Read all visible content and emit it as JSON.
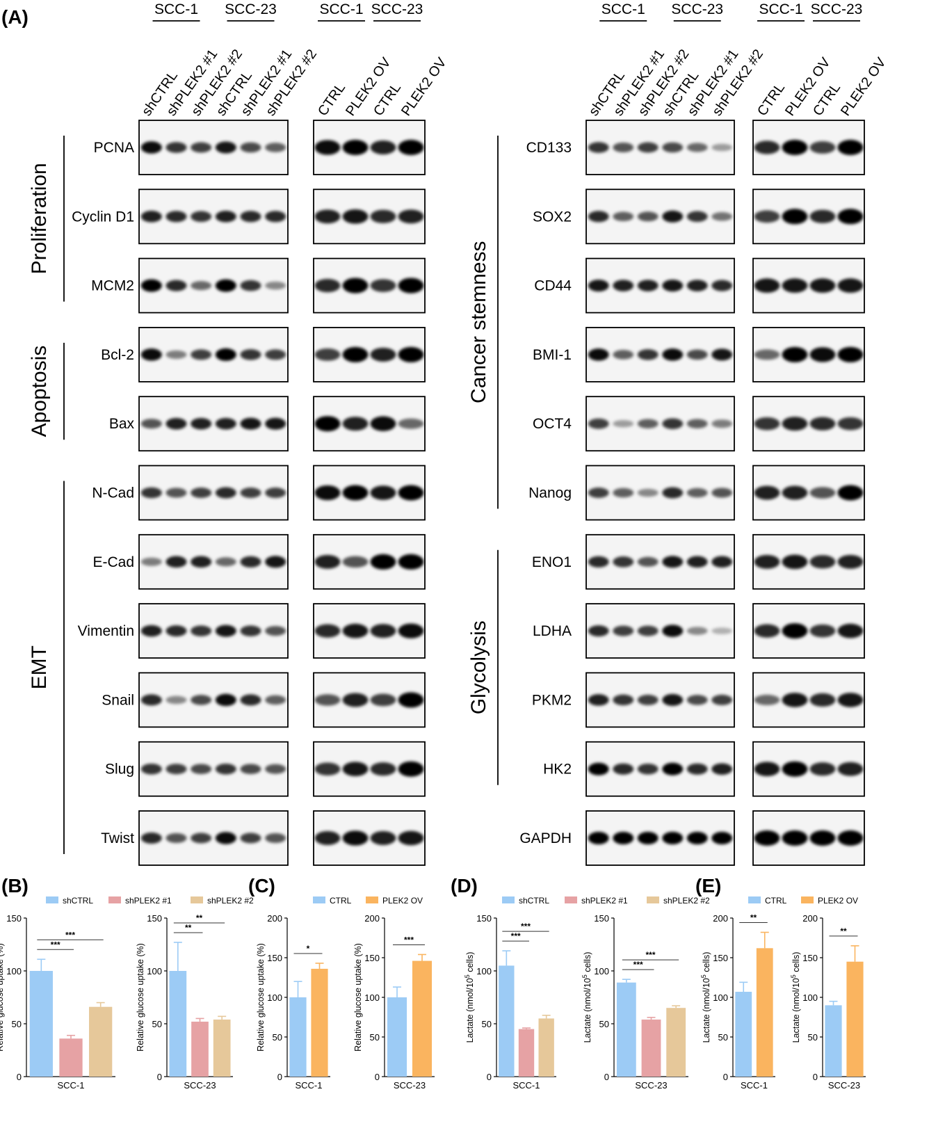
{
  "panel_labels": [
    "(A)",
    "(B)",
    "(C)",
    "(D)",
    "(E)"
  ],
  "blot_left": {
    "headers": {
      "kd": [
        "SCC-1",
        "SCC-23"
      ],
      "ov": [
        "SCC-1",
        "SCC-23"
      ]
    },
    "lanes_kd": [
      "shCTRL",
      "shPLEK2 #1",
      "shPLEK2 #2",
      "shCTRL",
      "shPLEK2 #1",
      "shPLEK2 #2"
    ],
    "lanes_ov": [
      "CTRL",
      "PLEK2 OV",
      "CTRL",
      "PLEK2 OV"
    ],
    "groups": [
      {
        "label": "Proliferation",
        "rows": [
          0,
          2
        ]
      },
      {
        "label": "Apoptosis",
        "rows": [
          3,
          4
        ]
      },
      {
        "label": "EMT",
        "rows": [
          5,
          10
        ]
      }
    ],
    "proteins": [
      "PCNA",
      "Cyclin D1",
      "MCM2",
      "Bcl-2",
      "Bax",
      "N-Cad",
      "E-Cad",
      "Vimentin",
      "Snail",
      "Slug",
      "Twist"
    ],
    "kd_intensity": [
      [
        0.95,
        0.75,
        0.7,
        0.9,
        0.65,
        0.55
      ],
      [
        0.85,
        0.8,
        0.75,
        0.85,
        0.8,
        0.8
      ],
      [
        1.0,
        0.8,
        0.5,
        1.0,
        0.75,
        0.35
      ],
      [
        0.95,
        0.4,
        0.7,
        1.0,
        0.75,
        0.7
      ],
      [
        0.6,
        0.85,
        0.85,
        0.85,
        0.9,
        0.9
      ],
      [
        0.75,
        0.6,
        0.7,
        0.8,
        0.7,
        0.7
      ],
      [
        0.4,
        0.85,
        0.85,
        0.5,
        0.8,
        0.9
      ],
      [
        0.85,
        0.8,
        0.75,
        0.9,
        0.75,
        0.6
      ],
      [
        0.8,
        0.35,
        0.65,
        0.95,
        0.8,
        0.55
      ],
      [
        0.75,
        0.7,
        0.65,
        0.75,
        0.65,
        0.6
      ],
      [
        0.8,
        0.6,
        0.7,
        0.95,
        0.7,
        0.6
      ]
    ],
    "ov_intensity": [
      [
        0.95,
        1.0,
        0.85,
        1.0
      ],
      [
        0.85,
        0.9,
        0.8,
        0.85
      ],
      [
        0.8,
        1.0,
        0.75,
        1.0
      ],
      [
        0.7,
        1.0,
        0.85,
        1.0
      ],
      [
        1.0,
        0.85,
        0.95,
        0.5
      ],
      [
        0.95,
        1.0,
        0.9,
        1.0
      ],
      [
        0.85,
        0.6,
        1.0,
        1.0
      ],
      [
        0.8,
        0.9,
        0.85,
        0.95
      ],
      [
        0.6,
        0.85,
        0.7,
        1.0
      ],
      [
        0.75,
        0.9,
        0.8,
        1.0
      ],
      [
        0.85,
        0.95,
        0.85,
        0.9
      ]
    ]
  },
  "blot_right": {
    "headers": {
      "kd": [
        "SCC-1",
        "SCC-23"
      ],
      "ov": [
        "SCC-1",
        "SCC-23"
      ]
    },
    "lanes_kd": [
      "shCTRL",
      "shPLEK2 #1",
      "shPLEK2 #2",
      "shCTRL",
      "shPLEK2 #1",
      "shPLEK2 #2"
    ],
    "lanes_ov": [
      "CTRL",
      "PLEK2 OV",
      "CTRL",
      "PLEK2 OV"
    ],
    "groups": [
      {
        "label": "Cancer stemness",
        "rows": [
          0,
          5
        ]
      },
      {
        "label": "Glycolysis",
        "rows": [
          6,
          9
        ]
      }
    ],
    "proteins": [
      "CD133",
      "SOX2",
      "CD44",
      "BMI-1",
      "OCT4",
      "Nanog",
      "ENO1",
      "LDHA",
      "PKM2",
      "HK2",
      "GAPDH"
    ],
    "kd_intensity": [
      [
        0.75,
        0.6,
        0.7,
        0.65,
        0.5,
        0.25
      ],
      [
        0.8,
        0.55,
        0.6,
        0.9,
        0.75,
        0.45
      ],
      [
        0.9,
        0.85,
        0.85,
        0.9,
        0.85,
        0.8
      ],
      [
        0.95,
        0.55,
        0.75,
        0.95,
        0.65,
        0.9
      ],
      [
        0.7,
        0.25,
        0.55,
        0.75,
        0.55,
        0.4
      ],
      [
        0.7,
        0.55,
        0.35,
        0.8,
        0.55,
        0.6
      ],
      [
        0.8,
        0.75,
        0.6,
        0.9,
        0.85,
        0.85
      ],
      [
        0.8,
        0.7,
        0.7,
        0.95,
        0.35,
        0.15
      ],
      [
        0.85,
        0.75,
        0.7,
        0.9,
        0.65,
        0.7
      ],
      [
        1.0,
        0.8,
        0.75,
        1.0,
        0.8,
        0.85
      ],
      [
        1.0,
        1.0,
        1.0,
        1.0,
        1.0,
        1.0
      ]
    ],
    "ov_intensity": [
      [
        0.8,
        1.0,
        0.7,
        1.0
      ],
      [
        0.7,
        1.0,
        0.8,
        1.0
      ],
      [
        0.9,
        0.9,
        0.9,
        0.9
      ],
      [
        0.5,
        1.0,
        0.95,
        1.0
      ],
      [
        0.75,
        0.85,
        0.8,
        0.75
      ],
      [
        0.85,
        0.85,
        0.6,
        1.0
      ],
      [
        0.85,
        0.9,
        0.8,
        0.85
      ],
      [
        0.8,
        1.0,
        0.75,
        0.9
      ],
      [
        0.5,
        0.9,
        0.8,
        0.9
      ],
      [
        0.9,
        1.0,
        0.8,
        0.85
      ],
      [
        1.0,
        1.0,
        1.0,
        1.0
      ]
    ]
  },
  "colors": {
    "shCTRL": "#9ccbf5",
    "shPLEK2_1": "#e6a2a4",
    "shPLEK2_2": "#e6c89a",
    "CTRL": "#9ccbf5",
    "PLEK2_OV": "#fab45f"
  },
  "chart_data": [
    {
      "panel": "(B)",
      "type": "bar",
      "legend": [
        "shCTRL",
        "shPLEK2 #1",
        "shPLEK2 #2"
      ],
      "legend_placement": "top",
      "subplots": [
        {
          "xlabel": "SCC-1",
          "ylabel": "Relative glucose uptake (%)",
          "ylim": [
            0,
            150
          ],
          "yticks": [
            0,
            50,
            100,
            150
          ],
          "values": [
            100,
            36,
            66
          ],
          "errors": [
            11,
            3,
            4
          ],
          "sig": [
            {
              "pair": [
                0,
                1
              ],
              "label": "***"
            },
            {
              "pair": [
                0,
                2
              ],
              "label": "***"
            }
          ]
        },
        {
          "xlabel": "SCC-23",
          "ylabel": "Relative glucose uptake (%)",
          "ylim": [
            0,
            150
          ],
          "yticks": [
            0,
            50,
            100,
            150
          ],
          "values": [
            100,
            52,
            54
          ],
          "errors": [
            27,
            3,
            3
          ],
          "sig": [
            {
              "pair": [
                0,
                1
              ],
              "label": "**"
            },
            {
              "pair": [
                0,
                2
              ],
              "label": "**"
            }
          ]
        }
      ]
    },
    {
      "panel": "(C)",
      "type": "bar",
      "legend": [
        "CTRL",
        "PLEK2 OV"
      ],
      "legend_placement": "top",
      "subplots": [
        {
          "xlabel": "SCC-1",
          "ylabel": "Relative glucose uptake (%)",
          "ylim": [
            0,
            200
          ],
          "yticks": [
            0,
            50,
            100,
            150,
            200
          ],
          "values": [
            100,
            136
          ],
          "errors": [
            20,
            7
          ],
          "sig": [
            {
              "pair": [
                0,
                1
              ],
              "label": "*"
            }
          ]
        },
        {
          "xlabel": "SCC-23",
          "ylabel": "Relative glucose uptake (%)",
          "ylim": [
            0,
            200
          ],
          "yticks": [
            0,
            50,
            100,
            150,
            200
          ],
          "values": [
            100,
            146
          ],
          "errors": [
            13,
            8
          ],
          "sig": [
            {
              "pair": [
                0,
                1
              ],
              "label": "***"
            }
          ]
        }
      ]
    },
    {
      "panel": "(D)",
      "type": "bar",
      "legend": [
        "shCTRL",
        "shPLEK2 #1",
        "shPLEK2 #2"
      ],
      "legend_placement": "top",
      "subplots": [
        {
          "xlabel": "SCC-1",
          "ylabel_main": "Lactate (nmol/10",
          "ylabel_sup": "5",
          "ylabel_tail": " cells)",
          "ylim": [
            0,
            150
          ],
          "yticks": [
            0,
            50,
            100,
            150
          ],
          "values": [
            105,
            45,
            55
          ],
          "errors": [
            14,
            1,
            3
          ],
          "sig": [
            {
              "pair": [
                0,
                1
              ],
              "label": "***"
            },
            {
              "pair": [
                0,
                2
              ],
              "label": "***"
            }
          ]
        },
        {
          "xlabel": "SCC-23",
          "ylabel_main": "Lactate (nmol/10",
          "ylabel_sup": "5",
          "ylabel_tail": " cells)",
          "ylim": [
            0,
            150
          ],
          "yticks": [
            0,
            50,
            100,
            150
          ],
          "values": [
            89,
            54,
            65
          ],
          "errors": [
            3,
            2,
            2
          ],
          "sig": [
            {
              "pair": [
                0,
                1
              ],
              "label": "***"
            },
            {
              "pair": [
                0,
                2
              ],
              "label": "***"
            }
          ]
        }
      ]
    },
    {
      "panel": "(E)",
      "type": "bar",
      "legend": [
        "CTRL",
        "PLEK2 OV"
      ],
      "legend_placement": "top",
      "subplots": [
        {
          "xlabel": "SCC-1",
          "ylabel_main": "Lactate (nmol/10",
          "ylabel_sup": "5",
          "ylabel_tail": " cells)",
          "ylim": [
            0,
            200
          ],
          "yticks": [
            0,
            50,
            100,
            150,
            200
          ],
          "values": [
            107,
            162
          ],
          "errors": [
            12,
            20
          ],
          "sig": [
            {
              "pair": [
                0,
                1
              ],
              "label": "**"
            }
          ]
        },
        {
          "xlabel": "SCC-23",
          "ylabel_main": "Lactate (nmol/10",
          "ylabel_sup": "5",
          "ylabel_tail": " cells)",
          "ylim": [
            0,
            200
          ],
          "yticks": [
            0,
            50,
            100,
            150,
            200
          ],
          "values": [
            90,
            145
          ],
          "errors": [
            5,
            20
          ],
          "sig": [
            {
              "pair": [
                0,
                1
              ],
              "label": "**"
            }
          ]
        }
      ]
    }
  ]
}
